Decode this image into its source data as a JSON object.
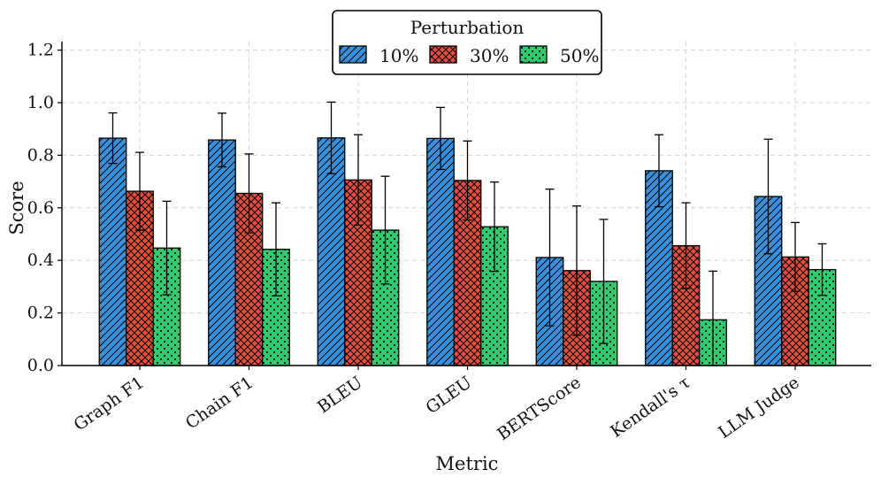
{
  "chart_data": {
    "type": "bar",
    "xlabel": "Metric",
    "ylabel": "Score",
    "ylim": [
      0,
      1.22
    ],
    "yticks": [
      "0.0",
      "0.2",
      "0.4",
      "0.6",
      "0.8",
      "1.0",
      "1.2"
    ],
    "grid": true,
    "legend": {
      "title": "Perturbation",
      "placement": "top-center"
    },
    "categories": [
      "Graph F1",
      "Chain F1",
      "BLEU",
      "GLEU",
      "BERTScore",
      "Kendall's τ",
      "LLM Judge"
    ],
    "series": [
      {
        "name": "10%",
        "color": "#3791dd",
        "pattern": "hatch-diagonal",
        "values": [
          0.865,
          0.858,
          0.866,
          0.864,
          0.411,
          0.741,
          0.643
        ],
        "errors": [
          0.096,
          0.102,
          0.136,
          0.118,
          0.26,
          0.137,
          0.218
        ]
      },
      {
        "name": "30%",
        "color": "#e74c3c",
        "pattern": "crosshatch",
        "values": [
          0.663,
          0.655,
          0.706,
          0.704,
          0.361,
          0.456,
          0.413
        ],
        "errors": [
          0.148,
          0.15,
          0.172,
          0.15,
          0.246,
          0.163,
          0.131
        ]
      },
      {
        "name": "50%",
        "color": "#2ecc71",
        "pattern": "dots",
        "values": [
          0.447,
          0.442,
          0.515,
          0.528,
          0.32,
          0.174,
          0.365
        ],
        "errors": [
          0.178,
          0.177,
          0.205,
          0.17,
          0.236,
          0.185,
          0.098
        ]
      }
    ]
  }
}
